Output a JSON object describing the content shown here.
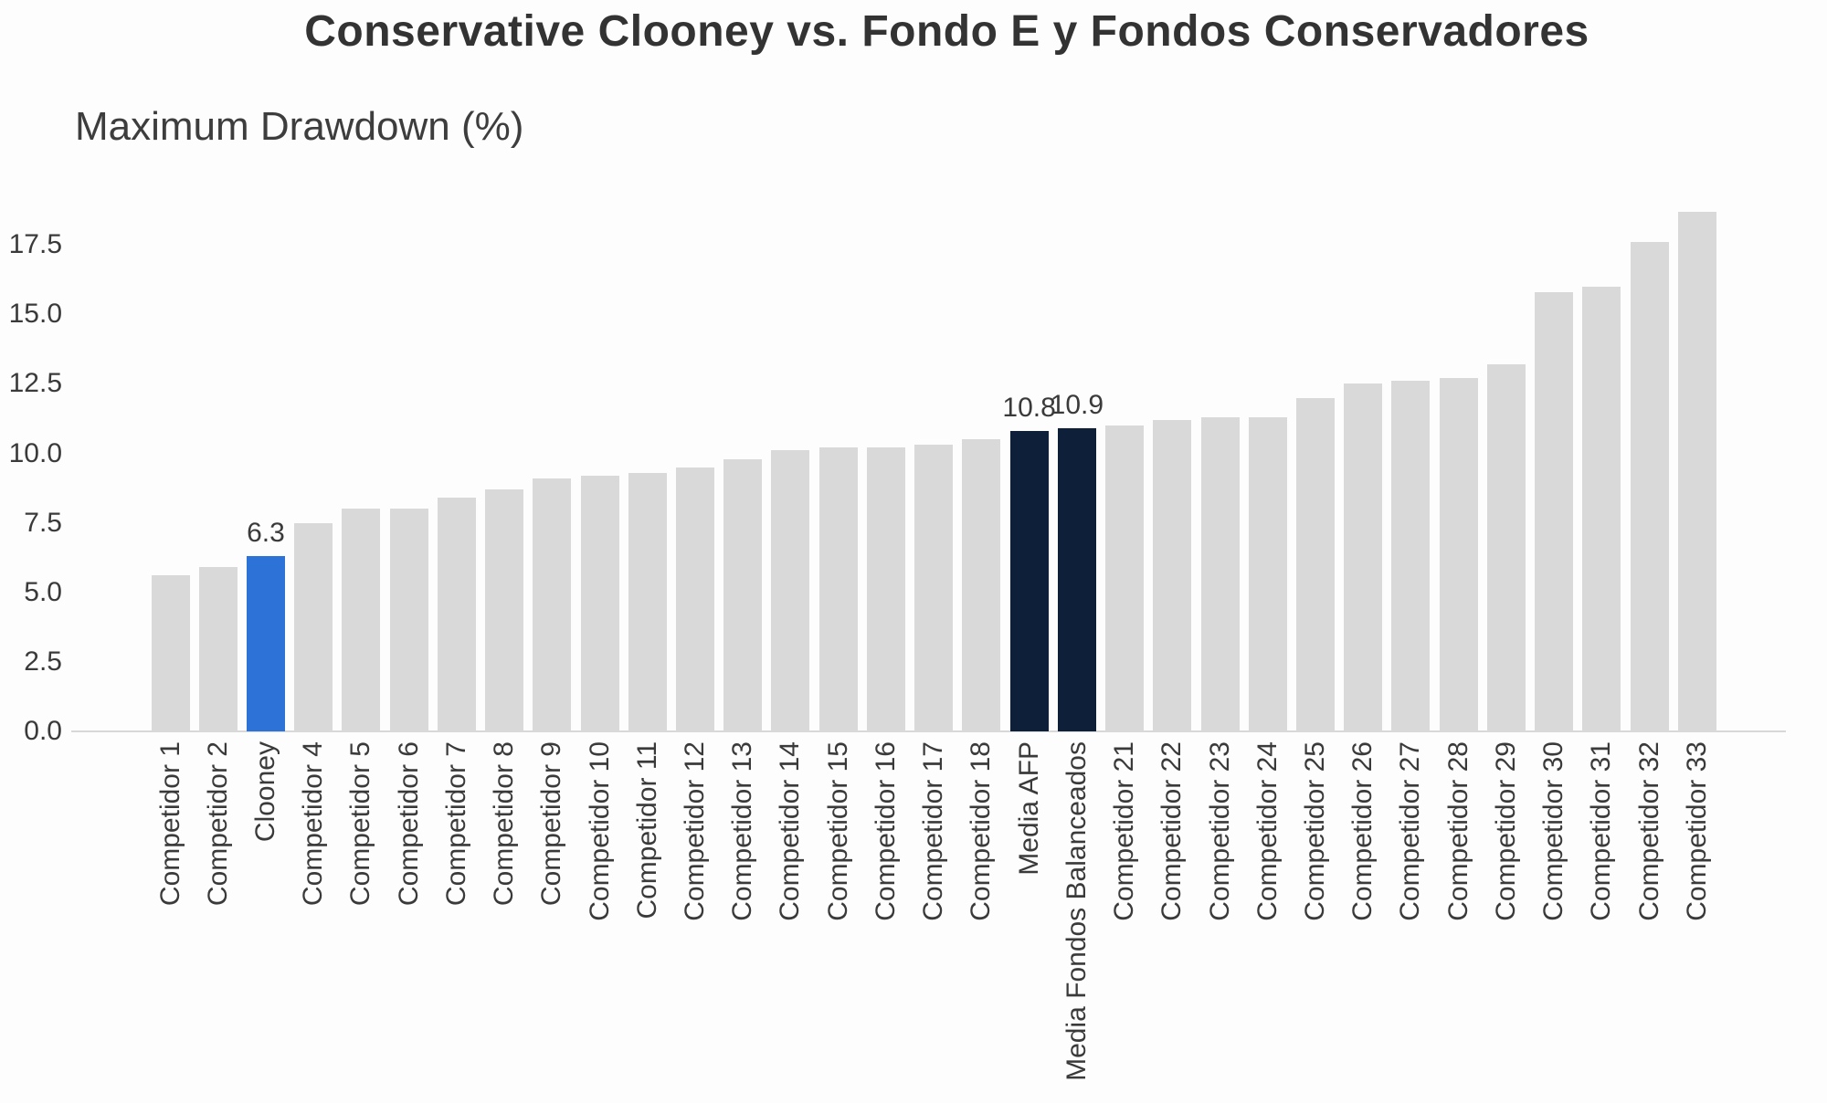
{
  "page": {
    "background": "#fdfdfd"
  },
  "header": {
    "title": "Conservative Clooney vs. Fondo E y Fondos Conservadores",
    "subtitle": "Maximum Drawdown (%)"
  },
  "chart_data": {
    "type": "bar",
    "title": "Conservative Clooney vs. Fondo E y Fondos Conservadores",
    "ylabel": "Maximum Drawdown (%)",
    "xlabel": "",
    "categories": [
      "Competidor 1",
      "Competidor 2",
      "Clooney",
      "Competidor 4",
      "Competidor 5",
      "Competidor 6",
      "Competidor 7",
      "Competidor 8",
      "Competidor 9",
      "Competidor 10",
      "Competidor 11",
      "Competidor 12",
      "Competidor 13",
      "Competidor 14",
      "Competidor 15",
      "Competidor 16",
      "Competidor 17",
      "Competidor 18",
      "Media AFP",
      "Media Fondos Balanceados",
      "Competidor 21",
      "Competidor 22",
      "Competidor 23",
      "Competidor 24",
      "Competidor 25",
      "Competidor 26",
      "Competidor 27",
      "Competidor 28",
      "Competidor 29",
      "Competidor 30",
      "Competidor 31",
      "Competidor 32",
      "Competidor 33"
    ],
    "values": [
      5.6,
      5.9,
      6.3,
      7.5,
      8.0,
      8.0,
      8.4,
      8.7,
      9.1,
      9.2,
      9.3,
      9.5,
      9.8,
      10.1,
      10.2,
      10.2,
      10.3,
      10.5,
      10.8,
      10.9,
      11.0,
      11.2,
      11.3,
      11.3,
      12.0,
      12.5,
      12.6,
      12.7,
      13.2,
      15.8,
      16.0,
      17.6,
      18.7
    ],
    "highlighted_category": "Clooney",
    "reference_categories": [
      "Media AFP",
      "Media Fondos Balanceados"
    ],
    "data_labels": {
      "Clooney": "6.3",
      "Media AFP": "10.8",
      "Media Fondos Balanceados": "10.9"
    },
    "yticks": [
      "0.0",
      "2.5",
      "5.0",
      "7.5",
      "10.0",
      "12.5",
      "15.0",
      "17.5"
    ],
    "ytick_values": [
      0,
      2.5,
      5,
      7.5,
      10,
      12.5,
      15,
      17.5
    ],
    "ylim": [
      0,
      19.6
    ],
    "grid": false,
    "legend": "none",
    "colors": {
      "bar_default": "#d9d9d9",
      "bar_highlight": "#2d73d7",
      "bar_reference": "#0e1f3a",
      "axis_line": "#d8d8d8",
      "text": "#3a3a3a"
    }
  }
}
